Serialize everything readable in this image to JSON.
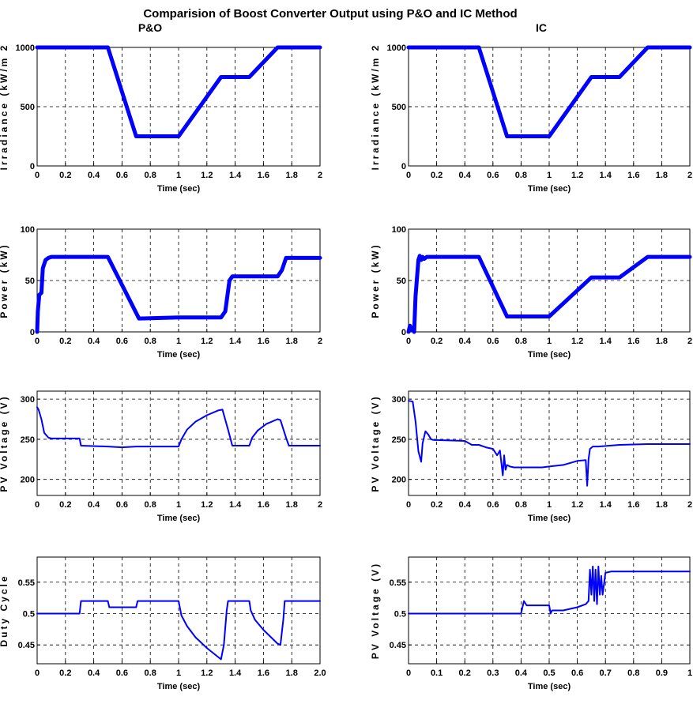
{
  "figure": {
    "title": "Comparision of Boost Converter Output using P&O and IC Method",
    "column_titles": [
      "P&O",
      "IC"
    ]
  },
  "colors": {
    "series": "#0000ff",
    "grid": "#000000",
    "axes": "#000000"
  },
  "chart_data": [
    {
      "id": "po-irradiance",
      "type": "line",
      "xlabel": "Time (sec)",
      "ylabel": "Irradiance (kW/m 2",
      "xlim": [
        0,
        2
      ],
      "ylim": [
        0,
        1000
      ],
      "xticks": [
        0,
        0.2,
        0.4,
        0.6,
        0.8,
        1,
        1.2,
        1.4,
        1.6,
        1.8,
        2
      ],
      "xtick_labels": [
        "0",
        "0.2",
        "0.4",
        "0.6",
        "0.8",
        "1",
        "1.2",
        "1.4",
        "1.6",
        "1.8",
        "2"
      ],
      "yticks": [
        0,
        500,
        1000
      ],
      "ytick_labels": [
        "0",
        "500",
        "1000"
      ],
      "grid": true,
      "line_width": 5,
      "series": [
        {
          "x": [
            0,
            0.5,
            0.7,
            1.0,
            1.3,
            1.5,
            1.7,
            2.0
          ],
          "y": [
            1000,
            1000,
            250,
            250,
            750,
            750,
            1000,
            1000
          ]
        }
      ]
    },
    {
      "id": "ic-irradiance",
      "type": "line",
      "xlabel": "Time (sec)",
      "ylabel": "Irradiance (kW/m 2",
      "xlim": [
        0,
        2
      ],
      "ylim": [
        0,
        1000
      ],
      "xticks": [
        0,
        0.2,
        0.4,
        0.6,
        0.8,
        1,
        1.2,
        1.4,
        1.6,
        1.8,
        2
      ],
      "xtick_labels": [
        "0",
        "0.2",
        "0.4",
        "0.6",
        "0.8",
        "1",
        "1.2",
        "1.4",
        "1.6",
        "1.8",
        "2"
      ],
      "yticks": [
        0,
        500,
        1000
      ],
      "ytick_labels": [
        "0",
        "500",
        "1000"
      ],
      "grid": true,
      "line_width": 5,
      "series": [
        {
          "x": [
            0,
            0.5,
            0.7,
            1.0,
            1.3,
            1.5,
            1.7,
            2.0
          ],
          "y": [
            1000,
            1000,
            250,
            250,
            750,
            750,
            1000,
            1000
          ]
        }
      ]
    },
    {
      "id": "po-power",
      "type": "line",
      "xlabel": "Time (sec)",
      "ylabel": "Power (kW)",
      "xlim": [
        0,
        2
      ],
      "ylim": [
        0,
        100
      ],
      "xticks": [
        0,
        0.2,
        0.4,
        0.6,
        0.8,
        1,
        1.2,
        1.4,
        1.6,
        1.8,
        2
      ],
      "xtick_labels": [
        "0",
        "0.2",
        "0.4",
        "0.6",
        "0.8",
        "1",
        "1.2",
        "1.4",
        "1.6",
        "1.8",
        "2"
      ],
      "yticks": [
        0,
        50,
        100
      ],
      "ytick_labels": [
        "0",
        "50",
        "100"
      ],
      "grid": true,
      "line_width": 5,
      "series": [
        {
          "x": [
            0,
            0.005,
            0.015,
            0.03,
            0.04,
            0.06,
            0.08,
            0.1,
            0.5,
            0.72,
            1.0,
            1.3,
            1.33,
            1.36,
            1.38,
            1.7,
            1.73,
            1.76,
            2.0
          ],
          "y": [
            0,
            20,
            36,
            38,
            62,
            70,
            72,
            73,
            73,
            13,
            14,
            14,
            20,
            50,
            54,
            54,
            60,
            72,
            72
          ]
        }
      ]
    },
    {
      "id": "ic-power",
      "type": "line",
      "xlabel": "Time (sec)",
      "ylabel": "Power (kW)",
      "xlim": [
        0,
        2
      ],
      "ylim": [
        0,
        100
      ],
      "xticks": [
        0,
        0.2,
        0.4,
        0.6,
        0.8,
        1,
        1.2,
        1.4,
        1.6,
        1.8,
        2
      ],
      "xtick_labels": [
        "0",
        "0.2",
        "0.4",
        "0.6",
        "0.8",
        "1",
        "1.2",
        "1.4",
        "1.6",
        "1.8",
        "2"
      ],
      "yticks": [
        0,
        50,
        100
      ],
      "ytick_labels": [
        "0",
        "50",
        "100"
      ],
      "grid": true,
      "line_width": 5,
      "series": [
        {
          "x": [
            0,
            0.01,
            0.02,
            0.03,
            0.04,
            0.05,
            0.07,
            0.08,
            0.09,
            0.1,
            0.11,
            0.13,
            0.15,
            0.5,
            0.7,
            1.0,
            1.3,
            1.5,
            1.7,
            2.0
          ],
          "y": [
            0,
            6,
            2,
            4,
            0,
            35,
            70,
            74,
            70,
            73,
            71,
            73,
            73,
            73,
            15,
            15,
            53,
            53,
            73,
            73
          ]
        }
      ]
    },
    {
      "id": "po-voltage",
      "type": "line",
      "xlabel": "Time (sec)",
      "ylabel": "PV Voltage (V)",
      "xlim": [
        0,
        2
      ],
      "ylim": [
        180,
        310
      ],
      "xticks": [
        0,
        0.2,
        0.4,
        0.6,
        0.8,
        1,
        1.2,
        1.4,
        1.6,
        1.8,
        2
      ],
      "xtick_labels": [
        "0",
        "0.2",
        "0.4",
        "0.6",
        "0.8",
        "1",
        "1.2",
        "1.4",
        "1.6",
        "1.8",
        "2"
      ],
      "yticks": [
        200,
        250,
        300
      ],
      "ytick_labels": [
        "200",
        "250",
        "300"
      ],
      "grid": true,
      "line_width": 2,
      "series": [
        {
          "x": [
            0,
            0.01,
            0.03,
            0.05,
            0.08,
            0.1,
            0.3,
            0.31,
            0.5,
            0.6,
            0.7,
            1.0,
            1.02,
            1.06,
            1.12,
            1.2,
            1.28,
            1.31,
            1.35,
            1.38,
            1.5,
            1.52,
            1.56,
            1.62,
            1.7,
            1.72,
            1.76,
            1.78,
            2.0
          ],
          "y": [
            290,
            287,
            275,
            258,
            252,
            251,
            251,
            242,
            241,
            240,
            241,
            241,
            250,
            262,
            272,
            280,
            286,
            287,
            262,
            242,
            242,
            252,
            261,
            269,
            275,
            274,
            252,
            242,
            242
          ]
        }
      ]
    },
    {
      "id": "ic-voltage",
      "type": "line",
      "xlabel": "Time (sec)",
      "ylabel": "PV Voltage (V)",
      "xlim": [
        0,
        2
      ],
      "ylim": [
        180,
        310
      ],
      "xticks": [
        0,
        0.2,
        0.4,
        0.6,
        0.8,
        1,
        1.2,
        1.4,
        1.6,
        1.8,
        2
      ],
      "xtick_labels": [
        "0",
        "0.2",
        "0.4",
        "0.6",
        "0.8",
        "1",
        "1.2",
        "1.4",
        "1.6",
        "1.8",
        "2"
      ],
      "yticks": [
        200,
        250,
        300
      ],
      "ytick_labels": [
        "200",
        "250",
        "300"
      ],
      "grid": true,
      "line_width": 2,
      "series": [
        {
          "x": [
            0,
            0.03,
            0.05,
            0.07,
            0.09,
            0.1,
            0.12,
            0.14,
            0.16,
            0.18,
            0.2,
            0.4,
            0.45,
            0.5,
            0.55,
            0.6,
            0.63,
            0.65,
            0.67,
            0.68,
            0.69,
            0.7,
            0.72,
            0.75,
            0.85,
            0.95,
            1.0,
            1.1,
            1.2,
            1.26,
            1.27,
            1.28,
            1.29,
            1.31,
            1.35,
            1.5,
            1.7,
            2.0
          ],
          "y": [
            298,
            297,
            272,
            235,
            222,
            245,
            260,
            256,
            250,
            249,
            249,
            248,
            243,
            243,
            240,
            238,
            230,
            236,
            205,
            230,
            212,
            218,
            216,
            215,
            215,
            215,
            216,
            218,
            223,
            224,
            192,
            225,
            238,
            241,
            241,
            243,
            244,
            244
          ]
        }
      ]
    },
    {
      "id": "po-duty",
      "type": "line",
      "xlabel": "Time (sec)",
      "ylabel": "Duty Cycle",
      "xlim": [
        0,
        2
      ],
      "ylim": [
        0.42,
        0.59
      ],
      "xticks": [
        0,
        0.2,
        0.4,
        0.6,
        0.8,
        1,
        1.2,
        1.4,
        1.6,
        1.8,
        2
      ],
      "xtick_labels": [
        "0",
        "0.2",
        "0.4",
        "0.6",
        "0.8",
        "1",
        "1.2",
        "1.4",
        "1.6",
        "1.8",
        "2.0"
      ],
      "yticks": [
        0.45,
        0.5,
        0.55
      ],
      "ytick_labels": [
        "0.45",
        "0.5",
        "0.55"
      ],
      "grid": true,
      "line_width": 2,
      "series": [
        {
          "x": [
            0,
            0.3,
            0.31,
            0.5,
            0.51,
            0.7,
            0.71,
            1.0,
            1.02,
            1.06,
            1.12,
            1.2,
            1.3,
            1.32,
            1.34,
            1.35,
            1.5,
            1.51,
            1.54,
            1.6,
            1.7,
            1.72,
            1.74,
            1.75,
            2.0
          ],
          "y": [
            0.5,
            0.5,
            0.52,
            0.52,
            0.51,
            0.51,
            0.52,
            0.52,
            0.497,
            0.48,
            0.462,
            0.445,
            0.427,
            0.45,
            0.505,
            0.52,
            0.52,
            0.505,
            0.49,
            0.474,
            0.452,
            0.45,
            0.49,
            0.52,
            0.52
          ]
        }
      ]
    },
    {
      "id": "ic-voltage-2",
      "type": "line",
      "xlabel": "Time (sec)",
      "ylabel": "PV Voltage (V)",
      "xlim": [
        0,
        1
      ],
      "ylim": [
        0.42,
        0.59
      ],
      "xticks": [
        0,
        0.1,
        0.2,
        0.3,
        0.4,
        0.5,
        0.6,
        0.7,
        0.8,
        0.9,
        1
      ],
      "xtick_labels": [
        "0",
        "0.1",
        "0.2",
        "0.3",
        "0.4",
        "0.5",
        "0.6",
        "0.7",
        "0.8",
        "0.9",
        "1"
      ],
      "yticks": [
        0.45,
        0.5,
        0.55
      ],
      "ytick_labels": [
        "0.45",
        "0.5",
        "0.55"
      ],
      "grid": true,
      "line_width": 2,
      "series": [
        {
          "x": [
            0,
            0.4,
            0.405,
            0.41,
            0.42,
            0.5,
            0.505,
            0.51,
            0.55,
            0.6,
            0.63,
            0.64,
            0.645,
            0.65,
            0.655,
            0.66,
            0.665,
            0.67,
            0.675,
            0.68,
            0.685,
            0.69,
            0.7,
            0.72,
            1.0
          ],
          "y": [
            0.5,
            0.5,
            0.51,
            0.52,
            0.513,
            0.513,
            0.5,
            0.505,
            0.505,
            0.51,
            0.515,
            0.52,
            0.57,
            0.53,
            0.575,
            0.52,
            0.57,
            0.515,
            0.575,
            0.53,
            0.56,
            0.53,
            0.565,
            0.567,
            0.567
          ]
        }
      ]
    }
  ]
}
